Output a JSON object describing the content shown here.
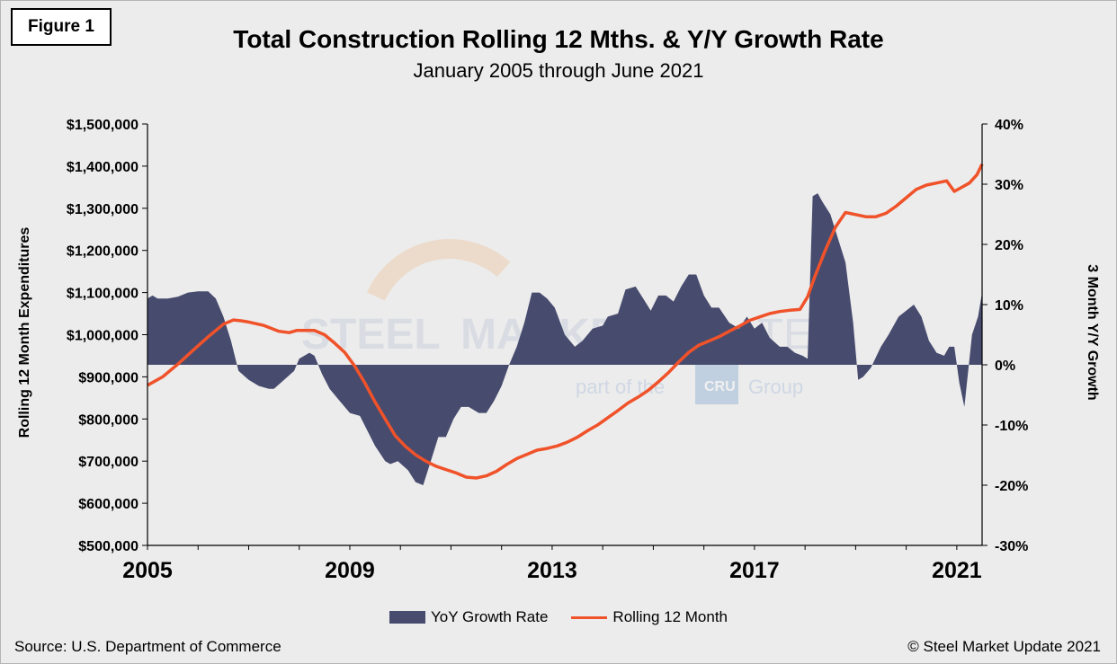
{
  "figure_label": "Figure 1",
  "title": "Total Construction Rolling 12 Mths. & Y/Y Growth Rate",
  "subtitle": "January 2005 through June 2021",
  "source": "Source: U.S. Department of Commerce",
  "copyright": "© Steel Market Update 2021",
  "watermark": {
    "word1": "STEEL",
    "word2": "MARKET",
    "word3": "UPDATE",
    "tag_before": "part of the",
    "tag_logo": "CRU",
    "tag_after": "Group"
  },
  "colors": {
    "area": "#474b6e",
    "line": "#f0522a",
    "background": "#ececec"
  },
  "chart_data": {
    "type": "area",
    "title": "Total Construction Rolling 12 Mths. & Y/Y Growth Rate",
    "subtitle": "January 2005 through June 2021",
    "ylabel_left": "Rolling 12 Month Expenditures",
    "ylabel_right": "3 Month Y/Y Growth",
    "ylim_left": [
      500000,
      1500000
    ],
    "ylim_right": [
      -30,
      40
    ],
    "xlim": [
      2005.0,
      2021.5
    ],
    "x_ticks": [
      "2005",
      "2009",
      "2013",
      "2017",
      "2021"
    ],
    "x_tick_values": [
      2005,
      2009,
      2013,
      2017,
      2021
    ],
    "y_ticks_left": [
      "$500,000",
      "$600,000",
      "$700,000",
      "$800,000",
      "$900,000",
      "$1,000,000",
      "$1,100,000",
      "$1,200,000",
      "$1,300,000",
      "$1,400,000",
      "$1,500,000"
    ],
    "y_tick_values_left": [
      500000,
      600000,
      700000,
      800000,
      900000,
      1000000,
      1100000,
      1200000,
      1300000,
      1400000,
      1500000
    ],
    "y_ticks_right": [
      "-30%",
      "-20%",
      "-10%",
      "0%",
      "10%",
      "20%",
      "30%",
      "40%"
    ],
    "y_tick_values_right": [
      -30,
      -20,
      -10,
      0,
      10,
      20,
      30,
      40
    ],
    "legend_position": "bottom",
    "grid": false,
    "series": [
      {
        "name": "YoY Growth Rate",
        "type": "area",
        "axis": "right",
        "x": [
          2005.0,
          2005.1,
          2005.2,
          2005.4,
          2005.6,
          2005.8,
          2006.0,
          2006.2,
          2006.35,
          2006.5,
          2006.65,
          2006.8,
          2007.0,
          2007.2,
          2007.4,
          2007.5,
          2007.7,
          2007.9,
          2008.0,
          2008.2,
          2008.3,
          2008.45,
          2008.6,
          2008.8,
          2009.0,
          2009.2,
          2009.35,
          2009.5,
          2009.7,
          2009.8,
          2009.95,
          2010.15,
          2010.3,
          2010.45,
          2010.6,
          2010.75,
          2010.9,
          2011.05,
          2011.2,
          2011.35,
          2011.55,
          2011.7,
          2011.85,
          2012.0,
          2012.15,
          2012.3,
          2012.45,
          2012.6,
          2012.75,
          2012.9,
          2013.05,
          2013.25,
          2013.45,
          2013.6,
          2013.8,
          2014.0,
          2014.1,
          2014.3,
          2014.45,
          2014.65,
          2014.8,
          2014.95,
          2015.1,
          2015.25,
          2015.4,
          2015.55,
          2015.7,
          2015.85,
          2016.0,
          2016.15,
          2016.3,
          2016.5,
          2016.7,
          2016.85,
          2017.0,
          2017.15,
          2017.3,
          2017.5,
          2017.65,
          2017.8,
          2017.95,
          2018.05,
          2018.15,
          2018.25,
          2018.35,
          2018.5,
          2018.65,
          2018.8,
          2018.95,
          2019.05,
          2019.15,
          2019.3,
          2019.5,
          2019.65,
          2019.85,
          2020.0,
          2020.15,
          2020.3,
          2020.45,
          2020.6,
          2020.75,
          2020.85,
          2020.95,
          2021.05,
          2021.15,
          2021.3,
          2021.42,
          2021.5
        ],
        "values": [
          11,
          11.5,
          11,
          11,
          11.3,
          12,
          12.2,
          12.2,
          11,
          8,
          4,
          -1,
          -2.5,
          -3.5,
          -4,
          -4,
          -2.5,
          -1,
          1,
          2,
          1.5,
          -1.5,
          -4,
          -6,
          -8,
          -8.5,
          -11,
          -13.5,
          -16,
          -16.5,
          -16,
          -17.5,
          -19.5,
          -20,
          -16,
          -12,
          -12,
          -9,
          -7,
          -7,
          -8,
          -8,
          -6,
          -3.5,
          0,
          3,
          7,
          12,
          12,
          11,
          9.5,
          5,
          3,
          4,
          6,
          6.5,
          8,
          8.5,
          12.5,
          13,
          11,
          9,
          11.5,
          11.5,
          10.5,
          13,
          15,
          15,
          11.5,
          9.5,
          9.5,
          7,
          6,
          8,
          6,
          7,
          4.5,
          3,
          3,
          2,
          1.5,
          1,
          28,
          28.5,
          27,
          25,
          21,
          17,
          7,
          -2.5,
          -2,
          -0.5,
          3,
          5,
          8,
          9,
          10,
          8,
          4,
          2,
          1.5,
          3,
          3,
          -3,
          -7,
          5,
          8,
          12
        ],
        "color": "#474b6e"
      },
      {
        "name": "Rolling 12 Month",
        "type": "line",
        "axis": "left",
        "x": [
          2005.0,
          2005.3,
          2005.6,
          2005.9,
          2006.2,
          2006.5,
          2006.7,
          2006.85,
          2007.0,
          2007.3,
          2007.6,
          2007.8,
          2007.95,
          2008.15,
          2008.3,
          2008.5,
          2008.7,
          2008.9,
          2009.1,
          2009.3,
          2009.5,
          2009.7,
          2009.9,
          2010.1,
          2010.3,
          2010.5,
          2010.7,
          2010.9,
          2011.1,
          2011.3,
          2011.5,
          2011.7,
          2011.9,
          2012.1,
          2012.3,
          2012.5,
          2012.7,
          2012.9,
          2013.1,
          2013.3,
          2013.5,
          2013.7,
          2013.9,
          2014.1,
          2014.3,
          2014.5,
          2014.7,
          2014.9,
          2015.1,
          2015.3,
          2015.5,
          2015.7,
          2015.9,
          2016.1,
          2016.3,
          2016.5,
          2016.7,
          2016.9,
          2017.1,
          2017.3,
          2017.5,
          2017.7,
          2017.9,
          2018.05,
          2018.2,
          2018.4,
          2018.6,
          2018.8,
          2019.0,
          2019.2,
          2019.4,
          2019.6,
          2019.8,
          2020.0,
          2020.2,
          2020.4,
          2020.6,
          2020.8,
          2020.95,
          2021.1,
          2021.25,
          2021.4,
          2021.5
        ],
        "values": [
          880000,
          900000,
          930000,
          963000,
          995000,
          1025000,
          1035000,
          1033000,
          1030000,
          1022000,
          1008000,
          1005000,
          1010000,
          1010000,
          1010000,
          1000000,
          980000,
          958000,
          925000,
          885000,
          840000,
          800000,
          760000,
          735000,
          715000,
          700000,
          688000,
          680000,
          672000,
          662000,
          660000,
          665000,
          676000,
          692000,
          706000,
          716000,
          726000,
          730000,
          736000,
          745000,
          757000,
          772000,
          786000,
          803000,
          820000,
          838000,
          852000,
          868000,
          888000,
          910000,
          935000,
          958000,
          975000,
          985000,
          995000,
          1008000,
          1020000,
          1034000,
          1042000,
          1050000,
          1055000,
          1058000,
          1060000,
          1090000,
          1140000,
          1200000,
          1255000,
          1290000,
          1285000,
          1280000,
          1280000,
          1288000,
          1305000,
          1325000,
          1345000,
          1355000,
          1360000,
          1365000,
          1340000,
          1350000,
          1360000,
          1380000,
          1405000
        ],
        "color": "#f0522a"
      }
    ]
  },
  "legend": [
    {
      "label": "YoY Growth Rate"
    },
    {
      "label": "Rolling 12 Month"
    }
  ]
}
